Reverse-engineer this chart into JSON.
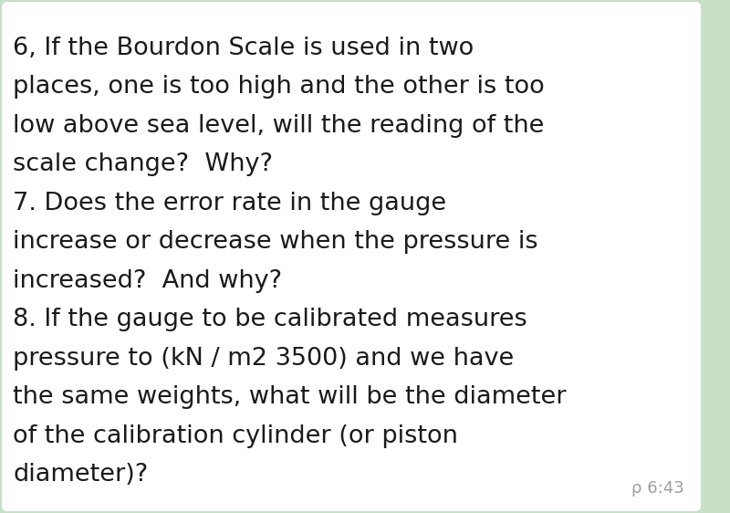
{
  "background_color": "#ffffff",
  "outer_bg_color": "#c8dfc8",
  "text_color": "#1a1a1a",
  "timestamp_color": "#9e9e9e",
  "right_border_color": "#8fbf8f",
  "timestamp_text": "ρ 6:43",
  "font_size": 19.5,
  "timestamp_font_size": 13,
  "lines": [
    "6, If the Bourdon Scale is used in two",
    "places, one is too high and the other is too",
    "low above sea level, will the reading of the",
    "scale change?  Why?",
    "7. Does the error rate in the gauge",
    "increase or decrease when the pressure is",
    "increased?  And why?",
    "8. If the gauge to be calibrated measures",
    "pressure to (kN / m2 3500) and we have",
    "the same weights, what will be the diameter",
    "of the calibration cylinder (or piston",
    "diameter)?"
  ]
}
